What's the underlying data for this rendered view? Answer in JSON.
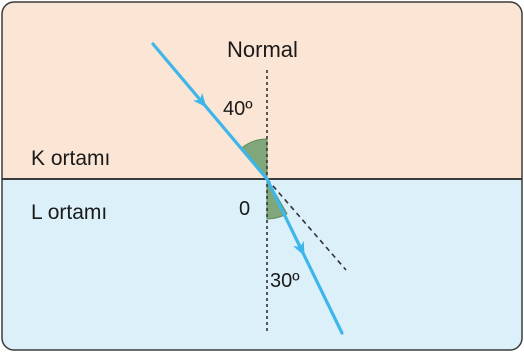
{
  "labels": {
    "normal": "Normal",
    "medium_top": "K ortamı",
    "medium_bottom": "L ortamı",
    "point": "0"
  },
  "angles": {
    "incidence_label": "40º",
    "refraction_label": "30º",
    "incidence_deg": 40,
    "refraction_deg": 30
  },
  "colors": {
    "medium_top": "#fbe5d4",
    "medium_bottom": "#dcf0fa",
    "ray": "#3eb6ea",
    "angle_fill": "#7fa77a",
    "border": "#3b3b3b",
    "normal_line": "#333333"
  }
}
